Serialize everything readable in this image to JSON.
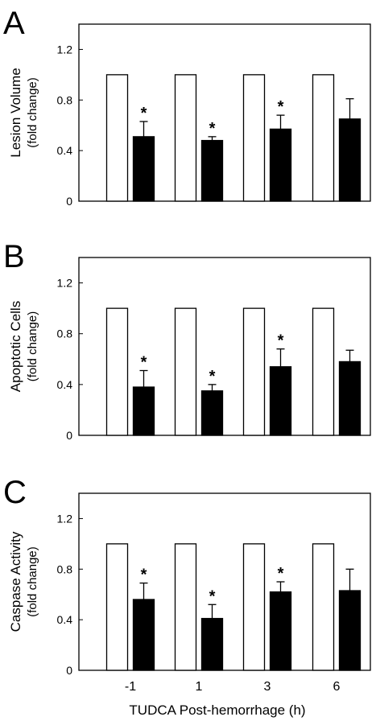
{
  "figure": {
    "xlabel": "TUDCA Post-hemorrhage (h)"
  },
  "chart_data": [
    {
      "type": "bar",
      "panel": "A",
      "ylabel": "Lesion Volume",
      "ylabel_sub": "(fold change)",
      "categories": [
        "-1",
        "1",
        "3",
        "6"
      ],
      "yticks": [
        "0",
        "0.4",
        "0.8",
        "1.2"
      ],
      "ylim": [
        0,
        1.4
      ],
      "grid": false,
      "series": [
        {
          "fill": "#ffffff",
          "values": [
            1.0,
            1.0,
            1.0,
            1.0
          ]
        },
        {
          "fill": "#000000",
          "values": [
            0.51,
            0.48,
            0.57,
            0.65
          ],
          "errors": [
            0.12,
            0.03,
            0.11,
            0.16
          ],
          "significant": [
            true,
            true,
            true,
            false
          ]
        }
      ],
      "significance_marker": "*"
    },
    {
      "type": "bar",
      "panel": "B",
      "ylabel": "Apoptotic Cells",
      "ylabel_sub": "(fold change)",
      "categories": [
        "-1",
        "1",
        "3",
        "6"
      ],
      "yticks": [
        "0",
        "0.4",
        "0.8",
        "1.2"
      ],
      "ylim": [
        0,
        1.4
      ],
      "grid": false,
      "series": [
        {
          "fill": "#ffffff",
          "values": [
            1.0,
            1.0,
            1.0,
            1.0
          ]
        },
        {
          "fill": "#000000",
          "values": [
            0.38,
            0.35,
            0.54,
            0.58
          ],
          "errors": [
            0.13,
            0.05,
            0.14,
            0.09
          ],
          "significant": [
            true,
            true,
            true,
            false
          ]
        }
      ],
      "significance_marker": "*"
    },
    {
      "type": "bar",
      "panel": "C",
      "ylabel": "Caspase Activity",
      "ylabel_sub": "(fold change)",
      "categories": [
        "-1",
        "1",
        "3",
        "6"
      ],
      "yticks": [
        "0",
        "0.4",
        "0.8",
        "1.2"
      ],
      "ylim": [
        0,
        1.4
      ],
      "grid": false,
      "series": [
        {
          "fill": "#ffffff",
          "values": [
            1.0,
            1.0,
            1.0,
            1.0
          ]
        },
        {
          "fill": "#000000",
          "values": [
            0.56,
            0.41,
            0.62,
            0.63
          ],
          "errors": [
            0.13,
            0.11,
            0.08,
            0.17
          ],
          "significant": [
            true,
            true,
            true,
            false
          ]
        }
      ],
      "significance_marker": "*"
    }
  ]
}
